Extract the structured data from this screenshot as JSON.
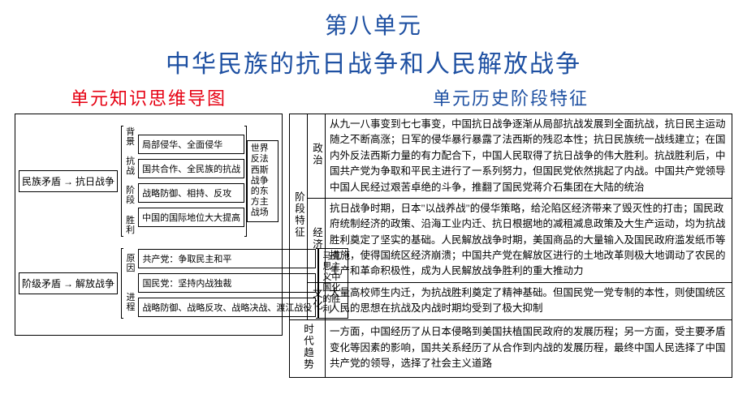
{
  "title": "第八单元",
  "subtitle": "中华民族的抗日战争和人民解放战争",
  "left": {
    "heading": "单元知识思维导图",
    "mindmap": [
      {
        "root": "民族矛盾 → 抗日战争",
        "labels": [
          "背景",
          "抗战",
          "阶段",
          "胜利"
        ],
        "branches": [
          "局部侵华、全面侵华",
          "国共合作、全民族的抗战",
          "战略防御、相持、反攻",
          "中国的国际地位大大提高"
        ],
        "result": "世界反法西斯战争的东方主战场"
      },
      {
        "root": "阶级矛盾 → 解放战争",
        "labels": [
          "原因",
          "",
          "进程"
        ],
        "branches": [
          "共产党：争取民主和平",
          "国民党：坚持内战独裁",
          "战略防御、战略反攻、战略决战、渡江战役"
        ],
        "result": "马克思主义中国化的胜利"
      }
    ]
  },
  "right": {
    "heading": "单元历史阶段特征",
    "grouplabel": "阶段特征",
    "rows": [
      {
        "label": "政治",
        "text": "从九一八事变到七七事变，中国抗日战争逐渐从局部抗战发展到全面抗战，抗日民主运动随之不断高涨；日军的侵华暴行暴露了法西斯的残忍本性；抗日民族统一战线建立；在国内外反法西斯力量的有力配合下，中国人民取得了抗日战争的伟大胜利。抗战胜利后，中国共产党为争取和平民主进行了一系列努力，但国民党依然挑起了内战。中国共产党领导中国人民经过艰苦卓绝的斗争，推翻了国民党蒋介石集团在大陆的统治"
      },
      {
        "label": "经济",
        "text": "抗日战争时期，日本\"以战养战\"的侵华策略，给沦陷区经济带来了毁灭性的打击；国民政府统制经济的政策、沿海工业内迁、抗日根据地的减租减息政策及大生产运动，均为抗战胜利奠定了坚实的基础。人民解放战争时期，美国商品的大量输入及国民政府滥发纸币等措施，使得国统区经济崩溃；中国共产党在解放区进行的土地改革则极大地调动了农民的生产和革命积极性，成为人民解放战争胜利的重大推动力"
      },
      {
        "label": "文化",
        "text": "大量高校师生内迁，为抗战胜利奠定了精神基础。但国民党一党专制的本性，则使国统区人民的思想在抗战及内战时期均受到了极大抑制"
      }
    ],
    "trend": {
      "label": "时代趋势",
      "text": "一方面，中国经历了从日本侵略到美国扶植国民政府的发展历程；另一方面，受主要矛盾变化等因素的影响，国共关系经历了从合作到内战的发展历程，最终中国人民选择了中国共产党的领导，选择了社会主义道路"
    }
  }
}
